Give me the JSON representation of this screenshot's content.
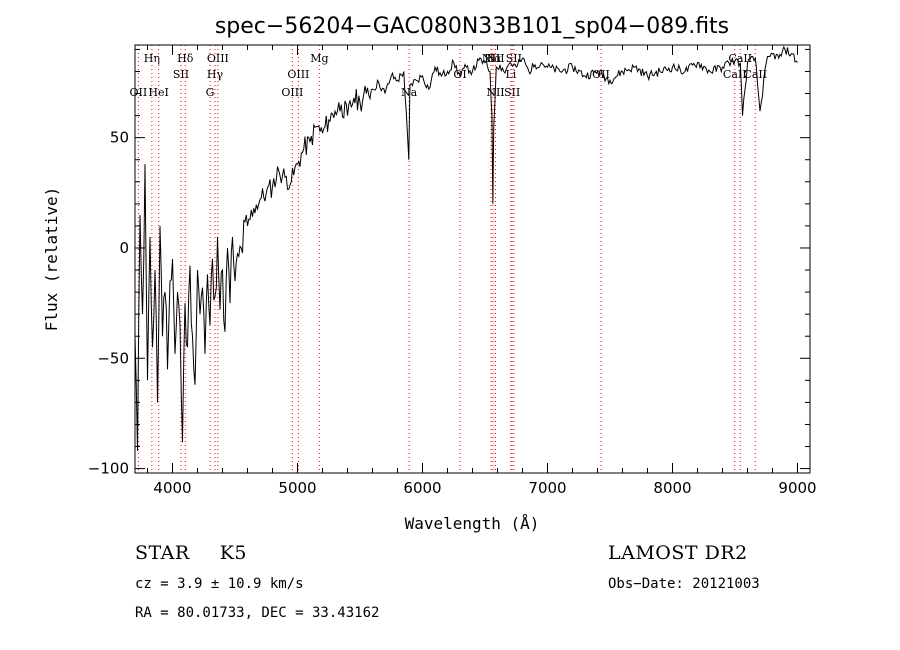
{
  "chart_data": {
    "type": "line",
    "title": "spec−56204−GAC080N33B101_sp04−089.fits",
    "xlabel": "Wavelength (Å)",
    "ylabel": "Flux (relative)",
    "xlim": [
      3700,
      9100
    ],
    "ylim": [
      -102,
      92
    ],
    "x_ticks": [
      {
        "value": 4000,
        "label": "4000"
      },
      {
        "value": 5000,
        "label": "5000"
      },
      {
        "value": 6000,
        "label": "6000"
      },
      {
        "value": 7000,
        "label": "7000"
      },
      {
        "value": 8000,
        "label": "8000"
      },
      {
        "value": 9000,
        "label": "9000"
      }
    ],
    "y_ticks": [
      {
        "value": -100,
        "label": "−100"
      },
      {
        "value": -50,
        "label": "−50"
      },
      {
        "value": 0,
        "label": "0"
      },
      {
        "value": 50,
        "label": "50"
      }
    ],
    "grid": false,
    "line_color": "#000000",
    "marker_color": "#ff0000",
    "series": [
      {
        "x": [
          3700,
          3720,
          3740,
          3760,
          3780,
          3800,
          3820,
          3840,
          3860,
          3880,
          3900,
          3920,
          3940,
          3960,
          3980,
          4000,
          4020,
          4040,
          4060,
          4080,
          4100,
          4120,
          4140,
          4160,
          4180,
          4200,
          4220,
          4240,
          4260,
          4280,
          4300,
          4320,
          4340,
          4360,
          4380,
          4400,
          4420,
          4440,
          4460,
          4480,
          4500,
          4550,
          4600,
          4650,
          4700,
          4750,
          4800,
          4850,
          4900,
          4950,
          5000,
          5050,
          5100,
          5150,
          5200,
          5250,
          5300,
          5350,
          5400,
          5450,
          5500,
          5550,
          5600,
          5650,
          5700,
          5750,
          5800,
          5850,
          5890,
          5895,
          5900,
          5950,
          6000,
          6050,
          6100,
          6150,
          6200,
          6250,
          6300,
          6350,
          6400,
          6450,
          6500,
          6540,
          6555,
          6563,
          6570,
          6590,
          6620,
          6650,
          6700,
          6750,
          6800,
          6850,
          6900,
          6950,
          7000,
          7100,
          7200,
          7300,
          7400,
          7500,
          7600,
          7700,
          7800,
          7900,
          8000,
          8100,
          8200,
          8300,
          8400,
          8450,
          8500,
          8542,
          8560,
          8600,
          8662,
          8700,
          8750,
          8800,
          8850,
          8900,
          8950,
          9000
        ],
        "y": [
          -40,
          -92,
          15,
          -30,
          38,
          -60,
          5,
          -45,
          -10,
          -70,
          10,
          -40,
          -20,
          -55,
          -15,
          -5,
          -48,
          -20,
          -35,
          -88,
          -25,
          -45,
          -8,
          -40,
          -62,
          -10,
          -30,
          -18,
          -48,
          -12,
          -35,
          -5,
          -22,
          5,
          -28,
          -10,
          -38,
          0,
          -25,
          5,
          -15,
          0,
          10,
          18,
          22,
          25,
          28,
          35,
          32,
          30,
          38,
          45,
          48,
          55,
          52,
          58,
          62,
          65,
          60,
          68,
          66,
          70,
          72,
          75,
          70,
          78,
          76,
          80,
          40,
          58,
          74,
          76,
          78,
          72,
          82,
          78,
          80,
          84,
          78,
          82,
          80,
          85,
          84,
          80,
          60,
          20,
          55,
          82,
          83,
          80,
          84,
          82,
          86,
          80,
          83,
          84,
          82,
          80,
          82,
          78,
          80,
          76,
          80,
          82,
          78,
          80,
          82,
          80,
          84,
          80,
          82,
          84,
          85,
          84,
          60,
          84,
          86,
          62,
          84,
          88,
          86,
          90,
          88,
          84
        ]
      }
    ],
    "line_markers": [
      {
        "x": 3727,
        "label": "OII",
        "row": 3
      },
      {
        "x": 3835,
        "label": "Hη",
        "row": 1
      },
      {
        "x": 3889,
        "label": "HeI",
        "row": 3
      },
      {
        "x": 4068,
        "label": "SII",
        "row": 2
      },
      {
        "x": 4102,
        "label": "Hδ",
        "row": 1
      },
      {
        "x": 4300,
        "label": "G",
        "row": 3
      },
      {
        "x": 4340,
        "label": "Hγ",
        "row": 2
      },
      {
        "x": 4363,
        "label": "OIII",
        "row": 1
      },
      {
        "x": 4959,
        "label": "OIII",
        "row": 3
      },
      {
        "x": 5007,
        "label": "OIII",
        "row": 2
      },
      {
        "x": 5175,
        "label": "Mg",
        "row": 1
      },
      {
        "x": 5893,
        "label": "Na",
        "row": 3
      },
      {
        "x": 6300,
        "label": "OI",
        "row": 2
      },
      {
        "x": 6548,
        "label": "NII",
        "row": 1
      },
      {
        "x": 6563,
        "label": "Hα",
        "row": 1
      },
      {
        "x": 6584,
        "label": "NII",
        "row": 3
      },
      {
        "x": 6584,
        "label": "NII",
        "row": 1
      },
      {
        "x": 6707,
        "label": "Li",
        "row": 2
      },
      {
        "x": 6717,
        "label": "SII",
        "row": 3
      },
      {
        "x": 6731,
        "label": "SII",
        "row": 1
      },
      {
        "x": 7428,
        "label": "OII",
        "row": 2
      },
      {
        "x": 8498,
        "label": "CaII",
        "row": 2
      },
      {
        "x": 8542,
        "label": "CaII",
        "row": 1
      },
      {
        "x": 8662,
        "label": "CaII",
        "row": 2
      }
    ]
  },
  "info": {
    "object_class": "STAR",
    "subclass": "K5",
    "survey": "LAMOST DR2",
    "cz": "cz = 3.9 ± 10.9 km/s",
    "obs_date": "Obs−Date: 20121003",
    "coords": "RA =  80.01733, DEC =  33.43162"
  }
}
